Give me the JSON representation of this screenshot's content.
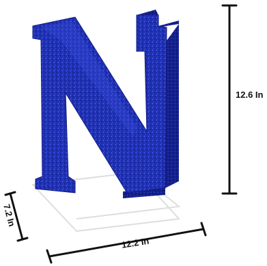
{
  "product": {
    "letter": "N",
    "finish": "glitter",
    "letter_color": "#1e2fb0",
    "letter_highlight": "#3a4fe0",
    "letter_shadow": "#121c78"
  },
  "dimensions": {
    "height": "12.6 In",
    "width": "12.2 In",
    "depth": "7.2 In",
    "line_color": "#111111"
  }
}
